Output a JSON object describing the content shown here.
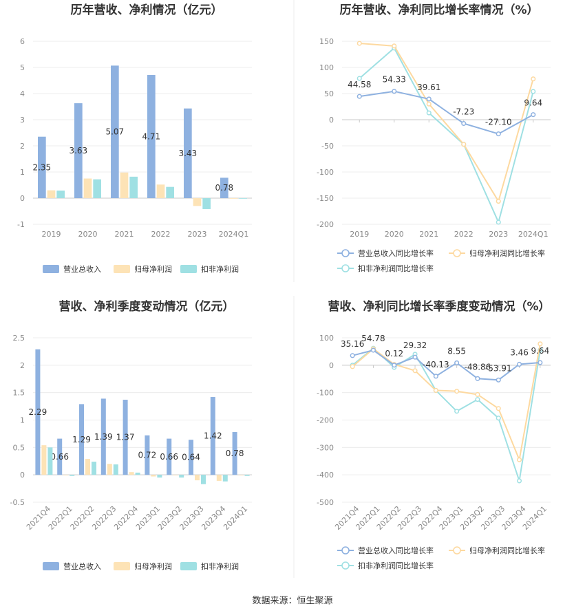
{
  "source": "数据来源：恒生聚源",
  "chart_data": [
    {
      "type": "bar",
      "title": "历年营收、净利情况（亿元）",
      "categories": [
        "2019",
        "2020",
        "2021",
        "2022",
        "2023",
        "2024Q1"
      ],
      "ylim": [
        -1,
        6
      ],
      "yticks": [
        -1,
        0,
        1,
        2,
        3,
        4,
        5,
        6
      ],
      "series": [
        {
          "name": "营业总收入",
          "color": "#8eb1e0",
          "values": [
            2.35,
            3.63,
            5.07,
            4.71,
            3.43,
            0.78
          ],
          "labels": [
            "2.35",
            "3.63",
            "5.07",
            "4.71",
            "3.43",
            "0.78"
          ]
        },
        {
          "name": "归母净利润",
          "color": "#fde3b6",
          "values": [
            0.3,
            0.75,
            0.98,
            0.52,
            -0.3,
            0.0
          ],
          "labels": []
        },
        {
          "name": "扣非净利润",
          "color": "#9fe0e3",
          "values": [
            0.29,
            0.72,
            0.82,
            0.43,
            -0.42,
            -0.02
          ],
          "labels": []
        }
      ],
      "legend": "bottom",
      "grid": true
    },
    {
      "type": "line",
      "title": "历年营收、净利同比增长率情况（%）",
      "categories": [
        "2019",
        "2020",
        "2021",
        "2022",
        "2023",
        "2024Q1"
      ],
      "ylim": [
        -200,
        150
      ],
      "yticks": [
        -200,
        -150,
        -100,
        -50,
        0,
        50,
        100,
        150
      ],
      "series": [
        {
          "name": "营业总收入同比增长率",
          "color": "#8eb1e0",
          "values": [
            44.58,
            54.33,
            39.61,
            -7.23,
            -27.1,
            9.64
          ],
          "labels": [
            "44.58",
            "54.33",
            "39.61",
            "-7.23",
            "-27.10",
            "9.64"
          ]
        },
        {
          "name": "归母净利润同比增长率",
          "color": "#fdd9a0",
          "values": [
            146,
            141,
            30,
            -47,
            -156,
            78
          ],
          "labels": []
        },
        {
          "name": "扣非净利润同比增长率",
          "color": "#9fe0e3",
          "values": [
            79,
            137,
            13,
            -47,
            -196,
            54
          ],
          "labels": []
        }
      ],
      "legend": "bottom",
      "grid": true
    },
    {
      "type": "bar",
      "title": "营收、净利季度变动情况（亿元）",
      "categories": [
        "2021Q4",
        "2022Q1",
        "2022Q2",
        "2022Q3",
        "2022Q4",
        "2023Q1",
        "2023Q2",
        "2023Q3",
        "2023Q4",
        "2024Q1"
      ],
      "ylim": [
        -0.5,
        2.5
      ],
      "yticks": [
        -0.5,
        0,
        0.5,
        1,
        1.5,
        2,
        2.5
      ],
      "series": [
        {
          "name": "营业总收入",
          "color": "#8eb1e0",
          "values": [
            2.29,
            0.66,
            1.29,
            1.39,
            1.37,
            0.72,
            0.66,
            0.64,
            1.42,
            0.78
          ],
          "labels": [
            "2.29",
            "0.66",
            "1.29",
            "1.39",
            "1.37",
            "0.72",
            "0.66",
            "0.64",
            "1.42",
            "0.78"
          ]
        },
        {
          "name": "归母净利润",
          "color": "#fde3b6",
          "values": [
            0.54,
            -0.01,
            0.29,
            0.2,
            0.05,
            -0.03,
            -0.01,
            -0.1,
            -0.11,
            0.0
          ],
          "labels": []
        },
        {
          "name": "扣非净利润",
          "color": "#9fe0e3",
          "values": [
            0.5,
            -0.02,
            0.24,
            0.19,
            0.04,
            -0.05,
            -0.05,
            -0.17,
            -0.12,
            -0.02
          ],
          "labels": []
        }
      ],
      "legend": "bottom",
      "grid": true
    },
    {
      "type": "line",
      "title": "营收、净利同比增长率季度变动情况（%）",
      "categories": [
        "2021Q4",
        "2022Q1",
        "2022Q2",
        "2022Q3",
        "2022Q4",
        "2023Q1",
        "2023Q2",
        "2023Q3",
        "2023Q4",
        "2024Q1"
      ],
      "ylim": [
        -500,
        100
      ],
      "yticks": [
        -500,
        -400,
        -300,
        -200,
        -100,
        0,
        100
      ],
      "series": [
        {
          "name": "营业总收入同比增长率",
          "color": "#8eb1e0",
          "values": [
            35.16,
            54.78,
            0.12,
            29.32,
            -40.13,
            8.55,
            -48.86,
            -53.91,
            3.46,
            9.64
          ],
          "labels": [
            "35.16",
            "54.78",
            "0.12",
            "29.32",
            "-40.13",
            "8.55",
            "-48.86",
            "-53.91",
            "3.46",
            "9.64"
          ]
        },
        {
          "name": "归母净利润同比增长率",
          "color": "#fdd9a0",
          "values": [
            -5,
            60,
            3,
            -20,
            -92,
            -95,
            -107,
            -158,
            -345,
            78
          ],
          "labels": []
        },
        {
          "name": "扣非净利润同比增长率",
          "color": "#9fe0e3",
          "values": [
            0,
            62,
            -8,
            40,
            -92,
            -168,
            -125,
            -193,
            -422,
            55
          ],
          "labels": []
        }
      ],
      "legend": "bottom",
      "grid": true
    }
  ]
}
